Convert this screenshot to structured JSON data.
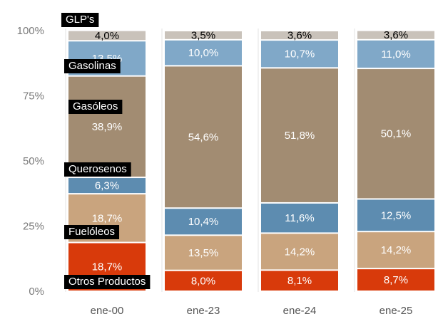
{
  "chart_data": {
    "type": "stacked_bar",
    "categories": [
      "ene-00",
      "ene-23",
      "ene-24",
      "ene-25"
    ],
    "series": [
      {
        "name": "Otros Productos",
        "color": "#d83a0b",
        "label_color": "#ffffff",
        "values": [
          18.7,
          8.0,
          8.1,
          8.7
        ],
        "value_labels": [
          "18,7%",
          "8,0%",
          "8,1%",
          "8,7%"
        ]
      },
      {
        "name": "Fuelóleos",
        "color": "#c9a47e",
        "label_color": "#ffffff",
        "values": [
          18.7,
          13.5,
          14.2,
          14.2
        ],
        "value_labels": [
          "18,7%",
          "13,5%",
          "14,2%",
          "14,2%"
        ]
      },
      {
        "name": "Querosenos",
        "color": "#5d8cb0",
        "label_color": "#ffffff",
        "values": [
          6.3,
          10.4,
          11.6,
          12.5
        ],
        "value_labels": [
          "6,3%",
          "10,4%",
          "11,6%",
          "12,5%"
        ]
      },
      {
        "name": "Gasóleos",
        "color": "#a28c72",
        "label_color": "#ffffff",
        "values": [
          38.9,
          54.6,
          51.8,
          50.1
        ],
        "value_labels": [
          "38,9%",
          "54,6%",
          "51,8%",
          "50,1%"
        ]
      },
      {
        "name": "Gasolinas",
        "color": "#80a8c8",
        "label_color": "#ffffff",
        "values": [
          13.5,
          10.0,
          10.7,
          11.0
        ],
        "value_labels": [
          "13,5%",
          "10,0%",
          "10,7%",
          "11,0%"
        ]
      },
      {
        "name": "GLP's",
        "color": "#c9c2ba",
        "label_color": "#000000",
        "values": [
          4.0,
          3.5,
          3.6,
          3.6
        ],
        "value_labels": [
          "4,0%",
          "3,5%",
          "3,6%",
          "3,6%"
        ]
      }
    ],
    "ylim": [
      0,
      100
    ],
    "yticks": [
      {
        "value": 0,
        "label": "0%"
      },
      {
        "value": 25,
        "label": "25%"
      },
      {
        "value": 50,
        "label": "50%"
      },
      {
        "value": 75,
        "label": "75%"
      },
      {
        "value": 100,
        "label": "100%"
      }
    ]
  }
}
